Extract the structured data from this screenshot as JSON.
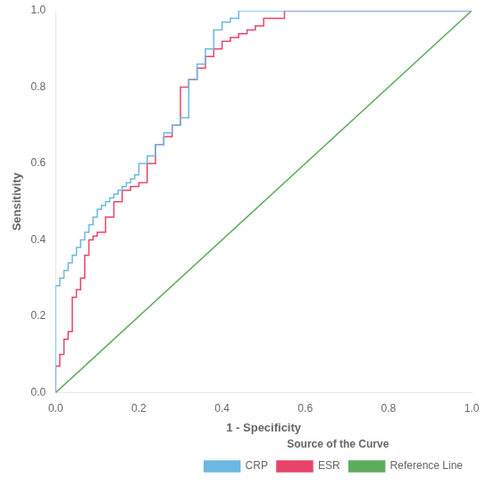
{
  "chart_data": {
    "type": "line",
    "xlabel": "1 - Specificity",
    "ylabel": "Sensitivity",
    "legend_title": "Source of the Curve",
    "legend": "lower right",
    "grid": false,
    "xlim": [
      0.0,
      1.0
    ],
    "ylim": [
      0.0,
      1.0
    ],
    "xticks": [
      {
        "value": 0.0,
        "label": "0.0"
      },
      0.2,
      0.4,
      0.6,
      0.8,
      {
        "value": 1.0,
        "label": "1.0"
      }
    ],
    "yticks": [
      {
        "value": 0.0,
        "label": "0.0"
      },
      0.2,
      0.4,
      0.6,
      0.8,
      {
        "value": 1.0,
        "label": "1.0"
      }
    ],
    "series": [
      {
        "name": "CRP",
        "color": "#6BB8E0",
        "x": [
          0.0,
          0.0,
          0.01,
          0.01,
          0.02,
          0.02,
          0.03,
          0.03,
          0.04,
          0.04,
          0.05,
          0.05,
          0.06,
          0.06,
          0.07,
          0.07,
          0.08,
          0.08,
          0.09,
          0.09,
          0.1,
          0.1,
          0.11,
          0.11,
          0.12,
          0.12,
          0.13,
          0.13,
          0.14,
          0.14,
          0.15,
          0.15,
          0.16,
          0.16,
          0.17,
          0.17,
          0.18,
          0.18,
          0.19,
          0.19,
          0.2,
          0.2,
          0.22,
          0.22,
          0.24,
          0.24,
          0.26,
          0.26,
          0.28,
          0.28,
          0.3,
          0.3,
          0.32,
          0.32,
          0.34,
          0.34,
          0.36,
          0.36,
          0.38,
          0.38,
          0.4,
          0.4,
          0.42,
          0.42,
          0.44,
          0.44,
          0.46,
          0.46,
          0.5,
          0.5,
          0.55,
          0.55,
          0.6,
          0.6,
          1.0,
          1.0
        ],
        "values": [
          0.0,
          0.28,
          0.28,
          0.3,
          0.3,
          0.32,
          0.32,
          0.34,
          0.34,
          0.36,
          0.36,
          0.38,
          0.38,
          0.4,
          0.4,
          0.42,
          0.42,
          0.44,
          0.44,
          0.46,
          0.46,
          0.48,
          0.48,
          0.49,
          0.49,
          0.5,
          0.5,
          0.51,
          0.51,
          0.52,
          0.52,
          0.53,
          0.53,
          0.54,
          0.54,
          0.55,
          0.55,
          0.56,
          0.56,
          0.57,
          0.57,
          0.6,
          0.6,
          0.62,
          0.62,
          0.65,
          0.65,
          0.68,
          0.68,
          0.7,
          0.7,
          0.72,
          0.72,
          0.82,
          0.82,
          0.86,
          0.86,
          0.9,
          0.9,
          0.95,
          0.95,
          0.97,
          0.97,
          0.98,
          0.98,
          1.0,
          1.0,
          1.0,
          1.0,
          1.0,
          1.0,
          1.0,
          1.0,
          1.0,
          1.0,
          1.0
        ]
      },
      {
        "name": "ESR",
        "color": "#E8446A",
        "x": [
          0.0,
          0.0,
          0.01,
          0.01,
          0.02,
          0.02,
          0.03,
          0.03,
          0.04,
          0.04,
          0.05,
          0.05,
          0.06,
          0.06,
          0.07,
          0.07,
          0.08,
          0.08,
          0.09,
          0.09,
          0.1,
          0.1,
          0.12,
          0.12,
          0.14,
          0.14,
          0.16,
          0.16,
          0.18,
          0.18,
          0.2,
          0.2,
          0.22,
          0.22,
          0.24,
          0.24,
          0.26,
          0.26,
          0.28,
          0.28,
          0.3,
          0.3,
          0.32,
          0.32,
          0.34,
          0.34,
          0.36,
          0.36,
          0.38,
          0.38,
          0.4,
          0.4,
          0.42,
          0.42,
          0.44,
          0.44,
          0.46,
          0.46,
          0.48,
          0.48,
          0.5,
          0.5,
          0.55,
          0.55,
          0.6,
          0.6,
          0.7,
          0.7,
          0.8,
          0.8,
          0.9,
          0.9,
          1.0,
          1.0
        ],
        "values": [
          0.0,
          0.07,
          0.07,
          0.1,
          0.1,
          0.14,
          0.14,
          0.16,
          0.16,
          0.25,
          0.25,
          0.27,
          0.27,
          0.3,
          0.3,
          0.36,
          0.36,
          0.4,
          0.4,
          0.41,
          0.41,
          0.42,
          0.42,
          0.46,
          0.46,
          0.5,
          0.5,
          0.53,
          0.53,
          0.54,
          0.54,
          0.55,
          0.55,
          0.6,
          0.6,
          0.65,
          0.65,
          0.67,
          0.67,
          0.7,
          0.7,
          0.8,
          0.8,
          0.82,
          0.82,
          0.85,
          0.85,
          0.88,
          0.88,
          0.9,
          0.9,
          0.92,
          0.92,
          0.93,
          0.93,
          0.94,
          0.94,
          0.95,
          0.95,
          0.96,
          0.96,
          0.98,
          0.98,
          1.0,
          1.0,
          1.0,
          1.0,
          1.0,
          1.0,
          1.0,
          1.0,
          1.0,
          1.0,
          1.0
        ]
      },
      {
        "name": "Reference Line",
        "color": "#5BAD5B",
        "x": [
          0,
          1
        ],
        "values": [
          0,
          1
        ]
      }
    ]
  }
}
